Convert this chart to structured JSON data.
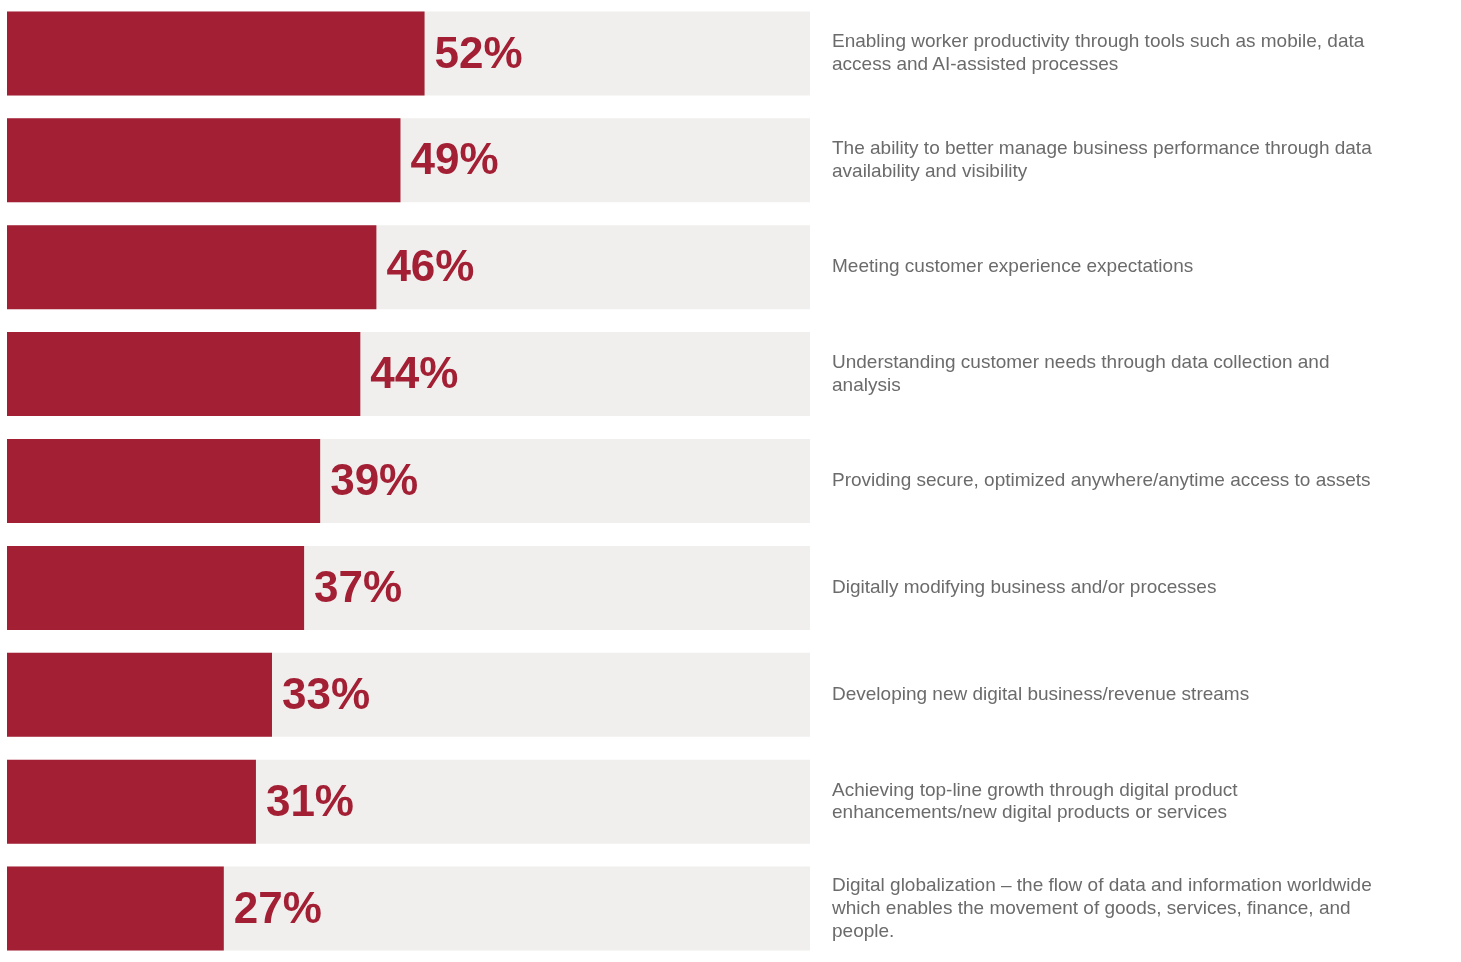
{
  "chart_data": {
    "type": "bar",
    "orientation": "horizontal",
    "grid": false,
    "legend": false,
    "tick_labels": "y",
    "xlim": [
      0,
      100
    ],
    "categories": [
      "Enabling worker productivity through tools such as mobile, data access and AI-assisted processes",
      "The ability to better manage business performance through data availability and visibility",
      "Meeting customer experience expectations",
      "Understanding customer needs through data collection and analysis",
      "Providing secure, optimized anywhere/anytime access to assets",
      "Digitally modifying business and/or processes",
      "Developing new digital business/revenue streams",
      "Achieving top-line growth through digital product enhancements/new digital products or services",
      "Digital globalization – the flow of data and information worldwide which enables the movement of goods, services, finance, and people."
    ],
    "series": [
      {
        "color": "#a31f34",
        "values": [
          52,
          49,
          46,
          44,
          39,
          37,
          33,
          31,
          27
        ],
        "value_labels": [
          "52%",
          "49%",
          "46%",
          "44%",
          "39%",
          "37%",
          "33%",
          "31%",
          "27%"
        ]
      }
    ]
  }
}
